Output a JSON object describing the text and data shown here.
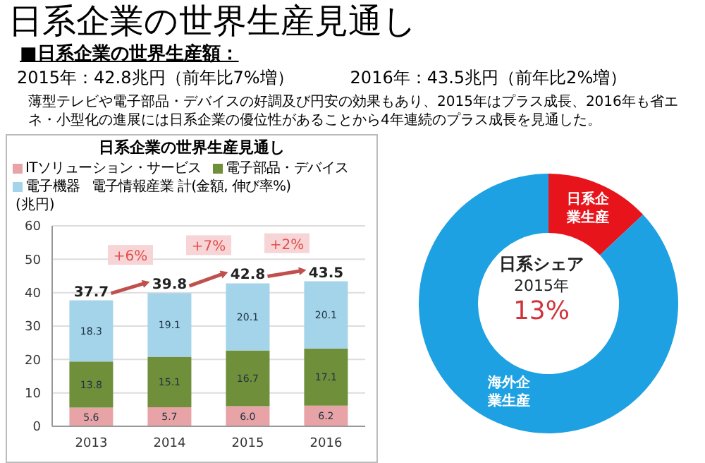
{
  "chart_data": [
    {
      "type": "other",
      "title": "日系企業の世界生産見通し",
      "subtitle": "■日系企業の世界生産額：",
      "annotations": [
        "2015年：42.8兆円（前年比7%増）",
        "2016年：43.5兆円（前年比2%増）",
        "薄型テレビや電子部品・デバイスの好調及び円安の効果もあり、2015年はプラス成長、2016年も省エネ・小型化の進展には日系企業の優位性があることから4年連続のプラス成長を見通した。"
      ]
    },
    {
      "type": "bar",
      "title": "日系企業の世界生産見通し",
      "ylabel": "(兆円)",
      "categories": [
        "2013",
        "2014",
        "2015",
        "2016"
      ],
      "stacked": true,
      "series": [
        {
          "name": "ITソリューション・サービス",
          "color": "#e8a3a6",
          "values": [
            5.6,
            5.7,
            6.0,
            6.2
          ],
          "value_labels": [
            "5.6",
            "5.7",
            "6.0",
            "6.2"
          ]
        },
        {
          "name": "電子部品・デバイス",
          "color": "#6f8f3a",
          "values": [
            13.8,
            15.1,
            16.7,
            17.1
          ]
        },
        {
          "name": "電子機器",
          "color": "#a3d4ea",
          "values": [
            18.3,
            19.1,
            20.1,
            20.1
          ]
        }
      ],
      "ylim": [
        0,
        60
      ],
      "yticks": [
        0,
        10,
        20,
        30,
        40,
        50,
        60
      ],
      "grid": "y",
      "legend": "top",
      "data_labels": true,
      "totals": [
        "37.7",
        "39.8",
        "42.8",
        "43.5"
      ],
      "annotations": [
        "電子情報産業 計(金額, 伸び率%)",
        "+6%",
        "+7%",
        "+2%"
      ]
    },
    {
      "type": "donut",
      "categories": [
        "日系企業生産",
        "海外企業生産"
      ],
      "values": [
        13,
        87
      ],
      "colors": [
        "#e8141c",
        "#1ea1e2"
      ],
      "annotations": [
        "日系シェア",
        "2015年",
        "13%"
      ]
    }
  ]
}
